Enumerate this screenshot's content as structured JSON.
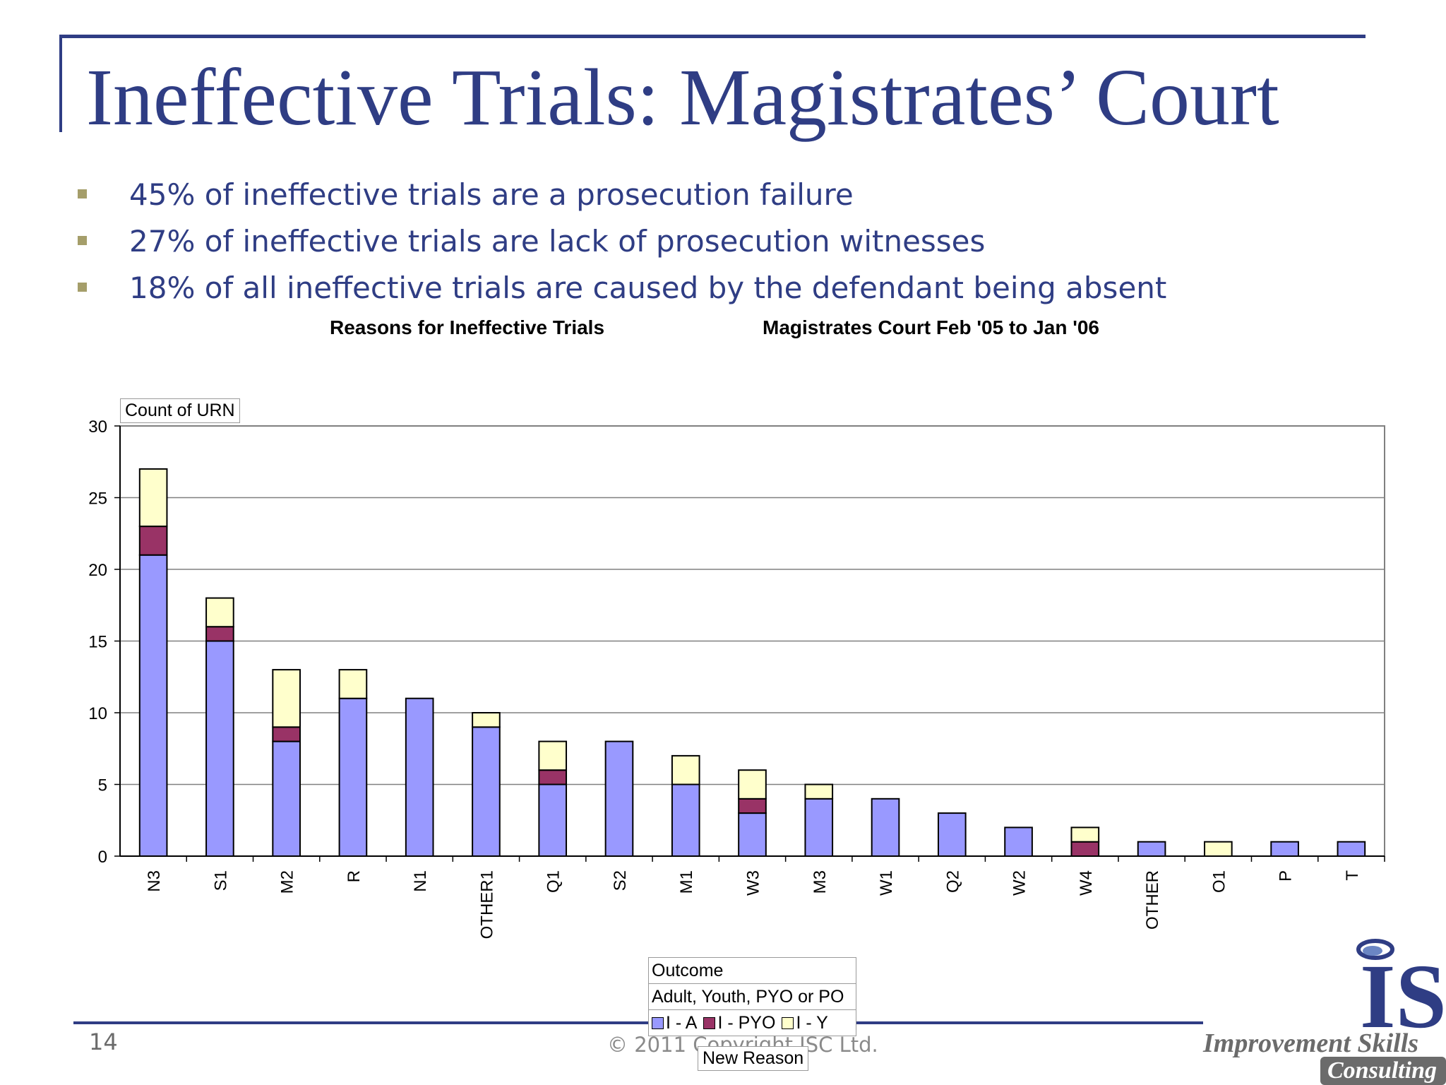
{
  "slide": {
    "title": "Ineffective Trials: Magistrates’ Court",
    "bullets": [
      "45% of ineffective trials are a prosecution failure",
      "27% of ineffective trials are lack of prosecution witnesses",
      "18% of all ineffective trials are caused by the defendant being absent"
    ],
    "page_number": "14",
    "copyright": "© 2011 Copyright ISC Ltd.",
    "logo": {
      "mark": "IS",
      "line1": "Improvement Skills",
      "line2": "Consulting"
    }
  },
  "chart_labels": {
    "title_left": "Reasons for Ineffective Trials",
    "title_right": "Magistrates Court Feb '05 to Jan '06",
    "y_field": "Count of URN",
    "legend_title": "Outcome",
    "legend_subtitle": "Adult, Youth, PYO or PO",
    "x_field": "New Reason"
  },
  "chart_data": {
    "type": "bar",
    "stacked": true,
    "categories": [
      "N3",
      "S1",
      "M2",
      "R",
      "N1",
      "OTHER1",
      "Q1",
      "S2",
      "M1",
      "W3",
      "M3",
      "W1",
      "Q2",
      "W2",
      "W4",
      "OTHER",
      "O1",
      "P",
      "T"
    ],
    "series": [
      {
        "name": "I - A",
        "color": "#9999ff",
        "values": [
          21,
          15,
          8,
          11,
          11,
          9,
          5,
          8,
          5,
          3,
          4,
          4,
          3,
          2,
          0,
          1,
          0,
          1,
          1
        ]
      },
      {
        "name": "I - PYO",
        "color": "#993366",
        "values": [
          2,
          1,
          1,
          0,
          0,
          0,
          1,
          0,
          0,
          1,
          0,
          0,
          0,
          0,
          1,
          0,
          0,
          0,
          0
        ]
      },
      {
        "name": "I - Y",
        "color": "#ffffcc",
        "values": [
          4,
          2,
          4,
          2,
          0,
          1,
          2,
          0,
          2,
          2,
          1,
          0,
          0,
          0,
          1,
          0,
          1,
          0,
          0
        ]
      }
    ],
    "ylim": [
      0,
      30
    ],
    "yticks": [
      0,
      5,
      10,
      15,
      20,
      25,
      30
    ],
    "grid": true,
    "legend_position": "bottom"
  }
}
